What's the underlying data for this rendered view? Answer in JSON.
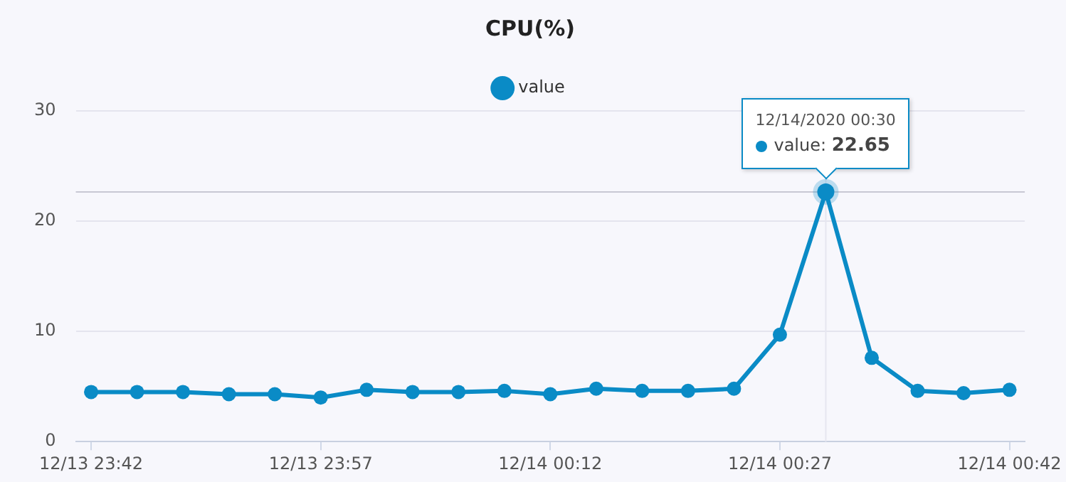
{
  "chart_data": {
    "type": "line",
    "title": "CPU(%)",
    "x": [
      "2020-12-13T23:42",
      "2020-12-13T23:45",
      "2020-12-13T23:48",
      "2020-12-13T23:51",
      "2020-12-13T23:54",
      "2020-12-13T23:57",
      "2020-12-14T00:00",
      "2020-12-14T00:03",
      "2020-12-14T00:06",
      "2020-12-14T00:09",
      "2020-12-14T00:12",
      "2020-12-14T00:15",
      "2020-12-14T00:18",
      "2020-12-14T00:21",
      "2020-12-14T00:24",
      "2020-12-14T00:27",
      "2020-12-14T00:30",
      "2020-12-14T00:33",
      "2020-12-14T00:36",
      "2020-12-14T00:39",
      "2020-12-14T00:42"
    ],
    "series": [
      {
        "name": "value",
        "color": "#0a8bc6",
        "values": [
          4.5,
          4.5,
          4.5,
          4.3,
          4.3,
          4.0,
          4.7,
          4.5,
          4.5,
          4.6,
          4.3,
          4.8,
          4.6,
          4.6,
          4.8,
          9.7,
          22.65,
          7.6,
          4.6,
          4.4,
          4.7
        ],
        "value_labels": [
          null,
          null,
          null,
          null,
          null,
          null,
          null,
          null,
          null,
          null,
          null,
          null,
          null,
          null,
          null,
          null,
          "value: 22.65",
          null,
          null,
          null,
          null
        ]
      }
    ],
    "xlim": [
      "2020-12-13T23:41",
      "2020-12-14T00:43"
    ],
    "xticks": [
      {
        "value": "2020-12-13T23:42",
        "label": "12/13 23:42"
      },
      {
        "value": "2020-12-13T23:57",
        "label": "12/13 23:57"
      },
      {
        "value": "2020-12-14T00:12",
        "label": "12/14 00:12"
      },
      {
        "value": "2020-12-14T00:27",
        "label": "12/14 00:27"
      },
      {
        "value": "2020-12-14T00:42",
        "label": "12/14 00:42"
      }
    ],
    "ylim": [
      0,
      30
    ],
    "yticks": [
      0,
      10,
      20,
      30
    ],
    "ref_lines": [
      {
        "axis": "y",
        "value": 22.65,
        "color": "#c8c8d4"
      },
      {
        "axis": "x",
        "value": "2020-12-14T00:30",
        "color": "#e6e6f0"
      }
    ],
    "annotations": [
      "12/14/2020 00:30"
    ],
    "grid": "y",
    "legend": "top",
    "marker": "circle",
    "line_style": "solid"
  }
}
